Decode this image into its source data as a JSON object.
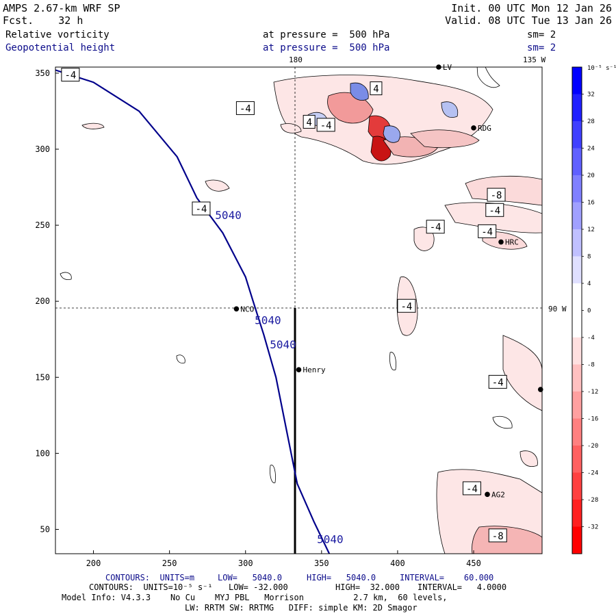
{
  "header": {
    "title": "AMPS 2.67-km WRF SP",
    "fcst": "Fcst.    32 h",
    "init": "Init. 00 UTC Mon 12 Jan 26",
    "valid": "Valid. 08 UTC Tue 13 Jan 26",
    "field1": "Relative vorticity",
    "field1_level": "at pressure =  500 hPa",
    "field1_sm": "sm= 2",
    "field2": "Geopotential height",
    "field2_level": "at pressure =  500 hPa",
    "field2_sm": "sm= 2"
  },
  "colors": {
    "navy": "#0b0b8a",
    "height_line": "#00008b",
    "negative": "#e61a1a",
    "positive": "#1a33e6"
  },
  "chart_data": {
    "type": "contour",
    "title": "Relative vorticity / Geopotential height at 500 hPa",
    "xlim": [
      175,
      495
    ],
    "ylim": [
      34,
      354
    ],
    "x_ticks": [
      200,
      250,
      300,
      350,
      400,
      450
    ],
    "y_ticks": [
      50,
      100,
      150,
      200,
      250,
      300,
      350
    ],
    "meridian_labels": [
      "180",
      "135 W",
      "90 W"
    ],
    "geopotential_height": {
      "label": "5040",
      "units": "m",
      "line_points": [
        [
          175,
          352
        ],
        [
          200,
          344
        ],
        [
          230,
          325
        ],
        [
          255,
          295
        ],
        [
          268,
          268
        ],
        [
          285,
          245
        ],
        [
          300,
          216
        ],
        [
          305,
          200
        ],
        [
          312,
          178
        ],
        [
          320,
          150
        ],
        [
          327,
          115
        ],
        [
          334,
          80
        ],
        [
          345,
          55
        ],
        [
          357,
          30
        ]
      ],
      "contour_labels": [
        {
          "text": "5040",
          "x": 280,
          "y": 254
        },
        {
          "text": "5040",
          "x": 306,
          "y": 185
        },
        {
          "text": "5040",
          "x": 316,
          "y": 169
        },
        {
          "text": "5040",
          "x": 347,
          "y": 41
        }
      ]
    },
    "vorticity_labels": [
      {
        "text": "-4",
        "x": 179,
        "y": 347
      },
      {
        "text": "-4",
        "x": 294,
        "y": 325
      },
      {
        "text": "4",
        "x": 338,
        "y": 316
      },
      {
        "text": "-4",
        "x": 347,
        "y": 314
      },
      {
        "text": "4",
        "x": 382,
        "y": 338
      },
      {
        "text": "-4",
        "x": 265,
        "y": 259
      },
      {
        "text": "-4",
        "x": 419,
        "y": 247
      },
      {
        "text": "-8",
        "x": 459,
        "y": 268
      },
      {
        "text": "-4",
        "x": 458,
        "y": 258
      },
      {
        "text": "-4",
        "x": 453,
        "y": 244
      },
      {
        "text": "-4",
        "x": 400,
        "y": 195
      },
      {
        "text": "-4",
        "x": 460,
        "y": 145
      },
      {
        "text": "-4",
        "x": 443,
        "y": 75
      },
      {
        "text": "-8",
        "x": 460,
        "y": 44
      }
    ],
    "stations": [
      {
        "name": "LV",
        "x": 427,
        "y": 354
      },
      {
        "name": "RDG",
        "x": 450,
        "y": 314
      },
      {
        "name": "HRC",
        "x": 468,
        "y": 239
      },
      {
        "name": "NCO",
        "x": 294,
        "y": 195
      },
      {
        "name": "Henry",
        "x": 335,
        "y": 155
      },
      {
        "name": "AG2",
        "x": 459,
        "y": 73
      },
      {
        "name": "",
        "x": 494,
        "y": 142
      }
    ],
    "colorbar": {
      "units": "10^-5 s^-1",
      "units_label": "10⁻⁵ s⁻¹",
      "ticks": [
        32,
        28,
        24,
        20,
        16,
        12,
        8,
        4,
        0,
        -4,
        -8,
        -12,
        -16,
        -20,
        -24,
        -28,
        -32
      ],
      "range": [
        -36,
        36
      ],
      "interval": 4
    }
  },
  "footer": {
    "line1_contours": "CONTOURS:  UNITS=m",
    "line1_low": "LOW=   5040.0",
    "line1_high": "HIGH=   5040.0",
    "line1_interval": "INTERVAL=    60.000",
    "line2_contours": "CONTOURS:  UNITS=10⁻⁵ s⁻¹",
    "line2_low": "LOW= -32.000",
    "line2_high": "HIGH=  32.000",
    "line2_interval": "INTERVAL=   4.0000",
    "model_line1": "Model Info: V4.3.3    No Cu    MYJ PBL   Morrison          2.7 km,  60 levels,",
    "model_line2": "LW: RRTM SW: RRTMG   DIFF: simple KM: 2D Smagor"
  }
}
